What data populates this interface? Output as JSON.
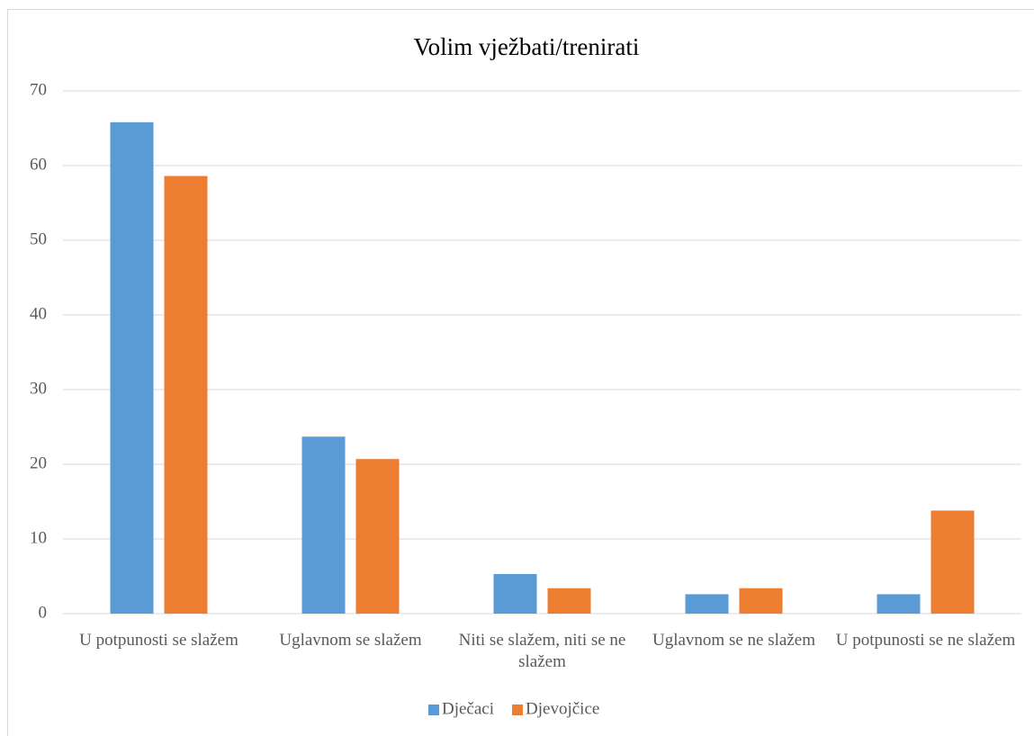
{
  "chart_data": {
    "type": "bar",
    "title": "Volim vježbati/trenirati",
    "categories": [
      "U potpunosti se slažem",
      "Uglavnom se slažem",
      "Niti se slažem, niti se ne slažem",
      "Uglavnom se ne slažem",
      "U potpunosti se ne slažem"
    ],
    "series": [
      {
        "name": "Dječaci",
        "color": "#5b9bd5",
        "values": [
          65.8,
          23.7,
          5.3,
          2.6,
          2.6
        ]
      },
      {
        "name": "Djevojčice",
        "color": "#ed7d31",
        "values": [
          58.6,
          20.7,
          3.4,
          3.4,
          13.8
        ]
      }
    ],
    "ylim": [
      0,
      70
    ],
    "yticks": [
      0,
      10,
      20,
      30,
      40,
      50,
      60,
      70
    ],
    "grid": true,
    "legend": "bottom"
  }
}
